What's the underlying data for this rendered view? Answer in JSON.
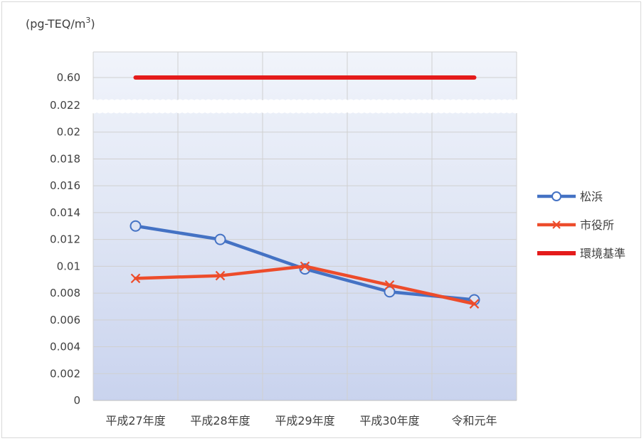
{
  "chart_data": {
    "type": "line",
    "unit_label": "(pg-TEQ/m",
    "unit_superscript": "3",
    "unit_close": ")",
    "categories": [
      "平成27年度",
      "平成28年度",
      "平成29年度",
      "平成30年度",
      "令和元年"
    ],
    "upper_axis": {
      "ticks": [
        "0.60"
      ],
      "tick_values": [
        0.6
      ]
    },
    "lower_axis": {
      "ylim": [
        0,
        0.022
      ],
      "ticks": [
        "0.022",
        "0.02",
        "0.018",
        "0.016",
        "0.014",
        "0.012",
        "0.01",
        "0.008",
        "0.006",
        "0.004",
        "0.002",
        "0"
      ],
      "tick_values": [
        0.022,
        0.02,
        0.018,
        0.016,
        0.014,
        0.012,
        0.01,
        0.008,
        0.006,
        0.004,
        0.002,
        0
      ]
    },
    "axis_break": true,
    "grid": true,
    "legend_position": "right",
    "series": [
      {
        "name": "松浜",
        "values": [
          0.013,
          0.012,
          0.0098,
          0.0081,
          0.0075
        ],
        "color": "#4472c4",
        "marker": "circle"
      },
      {
        "name": "市役所",
        "values": [
          0.0091,
          0.0093,
          0.01,
          0.0086,
          0.0072
        ],
        "color": "#ed4c2b",
        "marker": "x"
      },
      {
        "name": "環境基準",
        "values": [
          0.6,
          0.6,
          0.6,
          0.6,
          0.6
        ],
        "color": "#e41b1b",
        "marker": "none"
      }
    ]
  }
}
